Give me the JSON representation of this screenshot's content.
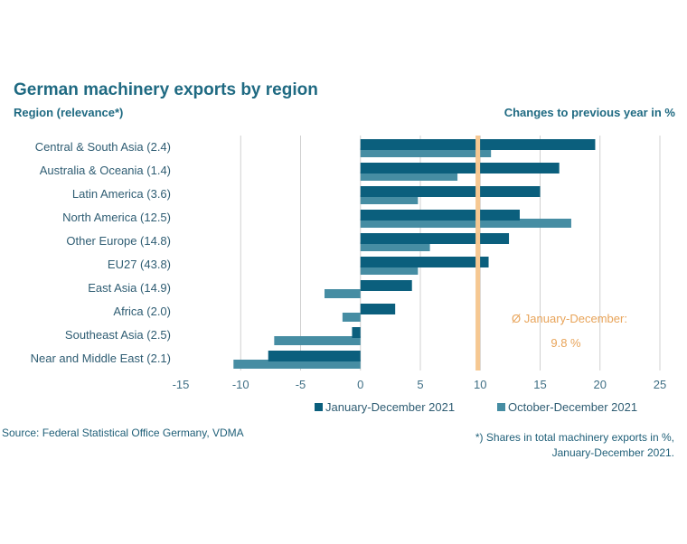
{
  "header": {
    "title": "German machinery exports by region",
    "subtitle_left": "Region (relevance*)",
    "subtitle_right": "Changes to previous year in %"
  },
  "footer": {
    "source": "Source: Federal Statistical Office Germany, VDMA",
    "footnote_line1": "*) Shares in total machinery exports in %,",
    "footnote_line2": "January-December 2021."
  },
  "colors": {
    "series1": "#0b5f7d",
    "series2": "#468da3",
    "average_line": "#f6c892",
    "average_text": "#e8a45a",
    "grid": "#d0d0d0"
  },
  "chart_data": {
    "type": "bar",
    "orientation": "horizontal",
    "title": "German machinery exports by region",
    "xlabel": "Changes to previous year in %",
    "ylabel": "Region (relevance*)",
    "categories": [
      "Central & South Asia (2.4)",
      "Australia & Oceania (1.4)",
      "Latin America (3.6)",
      "North America (12.5)",
      "Other Europe (14.8)",
      "EU27 (43.8)",
      "East Asia (14.9)",
      "Africa (2.0)",
      "Southeast Asia (2.5)",
      "Near and Middle East (2.1)"
    ],
    "series": [
      {
        "name": "January-December 2021",
        "values": [
          19.6,
          16.6,
          15.0,
          13.3,
          12.4,
          10.7,
          4.3,
          2.9,
          -0.7,
          -7.7
        ]
      },
      {
        "name": "October-December 2021",
        "values": [
          10.9,
          8.1,
          4.8,
          17.6,
          5.8,
          4.8,
          -3.0,
          -1.5,
          -7.2,
          -10.6
        ]
      }
    ],
    "xlim": [
      -15,
      25
    ],
    "xticks": [
      "-15",
      "-10",
      "-5",
      "0",
      "5",
      "10",
      "15",
      "20",
      "25"
    ],
    "xtick_values": [
      -15,
      -10,
      -5,
      0,
      5,
      10,
      15,
      20,
      25
    ],
    "grid": true,
    "legend_position": "bottom",
    "reference_line": {
      "value": 9.8,
      "label_line1": "Ø January-December:",
      "label_line2": "9.8 %"
    }
  }
}
